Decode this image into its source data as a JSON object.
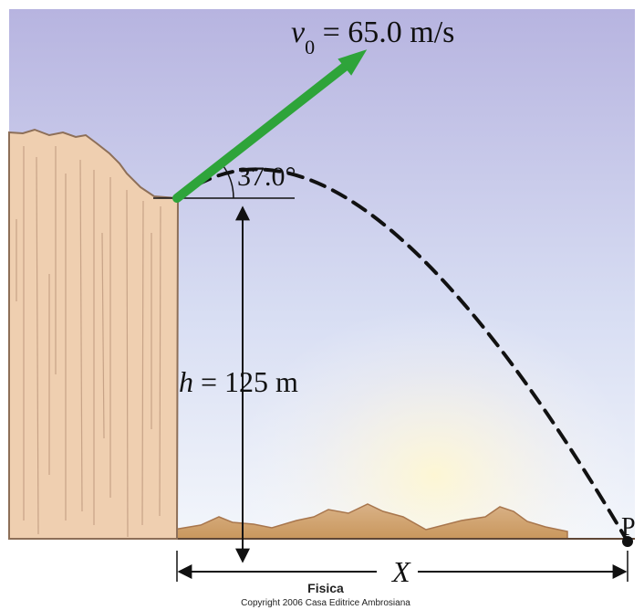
{
  "labels": {
    "velocity_symbol": "v",
    "velocity_subscript": "0",
    "velocity_value": " = 65.0 m/s",
    "angle": "37.0°",
    "height_symbol": "h",
    "height_value": " = 125 m",
    "distance": "X",
    "point": "P"
  },
  "credits": {
    "title": "Fisica",
    "copyright": "Copyright 2006 Casa Editrice Ambrosiana"
  },
  "colors": {
    "sky_top": "#b7b4e0",
    "sky_bottom": "#eef4fb",
    "cliff": "#efcfb0",
    "cliff_stroke": "#8d6f58",
    "arrow": "#2ea43a",
    "ground": "#d8b58d",
    "trajectory": "#111111"
  }
}
